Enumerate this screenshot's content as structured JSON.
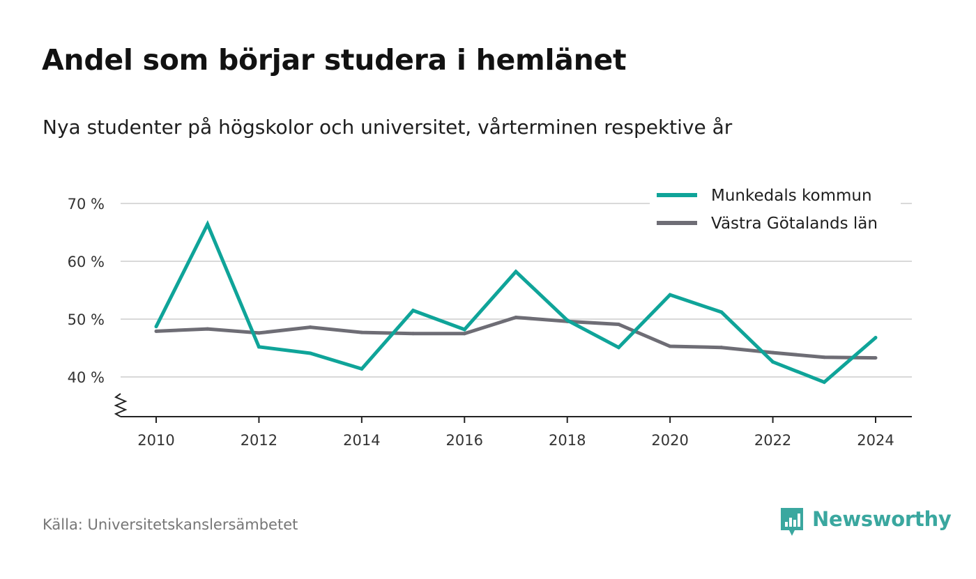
{
  "title": "Andel som börjar studera i hemlänet",
  "subtitle": "Nya studenter på högskolor och universitet, vårterminen respektive år",
  "source": "Källa: Universitetskanslersämbetet",
  "brand": "Newsworthy",
  "colors": {
    "series_1": "#0fa499",
    "series_2": "#6e6d75",
    "grid": "#d9d9d9",
    "brand": "#3aa79f"
  },
  "chart_data": {
    "type": "line",
    "title": "Andel som börjar studera i hemlänet",
    "xlabel": "",
    "ylabel": "",
    "x": [
      2010,
      2011,
      2012,
      2013,
      2014,
      2015,
      2016,
      2017,
      2018,
      2019,
      2020,
      2021,
      2022,
      2023,
      2024
    ],
    "x_ticks": [
      "2010",
      "2012",
      "2014",
      "2016",
      "2018",
      "2020",
      "2022",
      "2024"
    ],
    "y_ticks": [
      "40 %",
      "50 %",
      "60 %",
      "70 %"
    ],
    "ylim": [
      33,
      70
    ],
    "y_axis_broken": true,
    "grid": true,
    "legend_position": "top-right",
    "series": [
      {
        "name": "Munkedals kommun",
        "values": [
          48.7,
          66.4,
          45.2,
          44.1,
          41.4,
          51.5,
          48.2,
          58.2,
          49.8,
          45.1,
          54.2,
          51.2,
          42.6,
          39.1,
          46.8
        ]
      },
      {
        "name": "Västra Götalands län",
        "values": [
          47.9,
          48.3,
          47.6,
          48.6,
          47.7,
          47.5,
          47.5,
          50.3,
          49.6,
          49.1,
          45.3,
          45.1,
          44.2,
          43.4,
          43.3
        ]
      }
    ]
  }
}
